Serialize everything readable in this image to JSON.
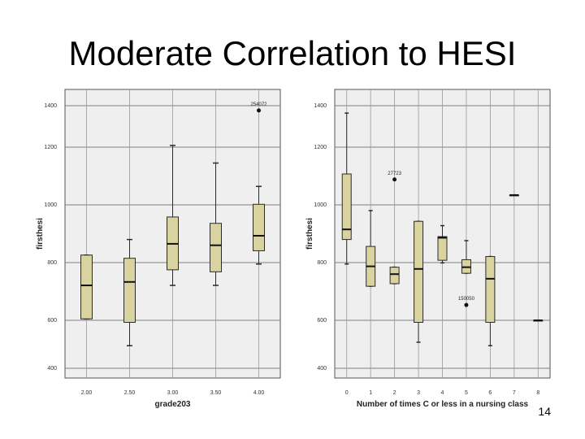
{
  "slide": {
    "title": "Moderate Correlation to HESI",
    "page_number": "14"
  },
  "colors": {
    "box_fill": "#d9d3a0",
    "box_stroke": "#2b2b2b",
    "plot_bg": "#efefef",
    "grid": "#7f7f7f"
  },
  "chart_data": [
    {
      "type": "boxplot",
      "xlabel": "grade203",
      "ylabel": "firsthesi",
      "ylim": [
        400,
        1400
      ],
      "yticks": [
        "1400",
        "1200",
        "1000",
        "800",
        "600",
        "400"
      ],
      "categories": [
        "2.00",
        "2.50",
        "3.00",
        "3.50",
        "4.00"
      ],
      "boxes": [
        {
          "min": 605,
          "q1": 605,
          "median": 721,
          "q3": 826,
          "max": 826
        },
        {
          "min": 512,
          "q1": 593,
          "median": 733,
          "q3": 815,
          "max": 880
        },
        {
          "min": 721,
          "q1": 775,
          "median": 865,
          "q3": 958,
          "max": 1206
        },
        {
          "min": 721,
          "q1": 768,
          "median": 860,
          "q3": 936,
          "max": 1145
        },
        {
          "min": 795,
          "q1": 841,
          "median": 893,
          "q3": 1002,
          "max": 1064
        }
      ],
      "outliers": [
        {
          "category": "4.00",
          "value": 1327,
          "label": "254072"
        }
      ]
    },
    {
      "type": "boxplot",
      "xlabel": "Number of times C or less in a nursing class",
      "ylabel": "firsthesi",
      "ylim": [
        400,
        1400
      ],
      "yticks": [
        "1400",
        "1200",
        "1000",
        "800",
        "600",
        "400"
      ],
      "categories": [
        "0",
        "1",
        "2",
        "3",
        "4",
        "5",
        "6",
        "7",
        "8"
      ],
      "boxes": [
        {
          "min": 795,
          "q1": 880,
          "median": 915,
          "q3": 1107,
          "max": 1318
        },
        {
          "min": 718,
          "q1": 718,
          "median": 787,
          "q3": 856,
          "max": 980
        },
        {
          "min": 727,
          "q1": 727,
          "median": 760,
          "q3": 784,
          "max": 784
        },
        {
          "min": 524,
          "q1": 593,
          "median": 778,
          "q3": 943,
          "max": 943
        },
        {
          "min": 799,
          "q1": 808,
          "median": 886,
          "q3": 890,
          "max": 928
        },
        {
          "min": 763,
          "q1": 763,
          "median": 784,
          "q3": 810,
          "max": 876
        },
        {
          "min": 512,
          "q1": 593,
          "median": 744,
          "q3": 821,
          "max": 821
        },
        {
          "min": 1034,
          "q1": 1034,
          "median": 1034,
          "q3": 1034,
          "max": 1034
        },
        {
          "min": 600,
          "q1": 600,
          "median": 600,
          "q3": 600,
          "max": 600
        }
      ],
      "outliers": [
        {
          "category": "2",
          "value": 1088,
          "label": "27723"
        },
        {
          "category": "5",
          "value": 653,
          "label": "150050"
        }
      ]
    }
  ]
}
